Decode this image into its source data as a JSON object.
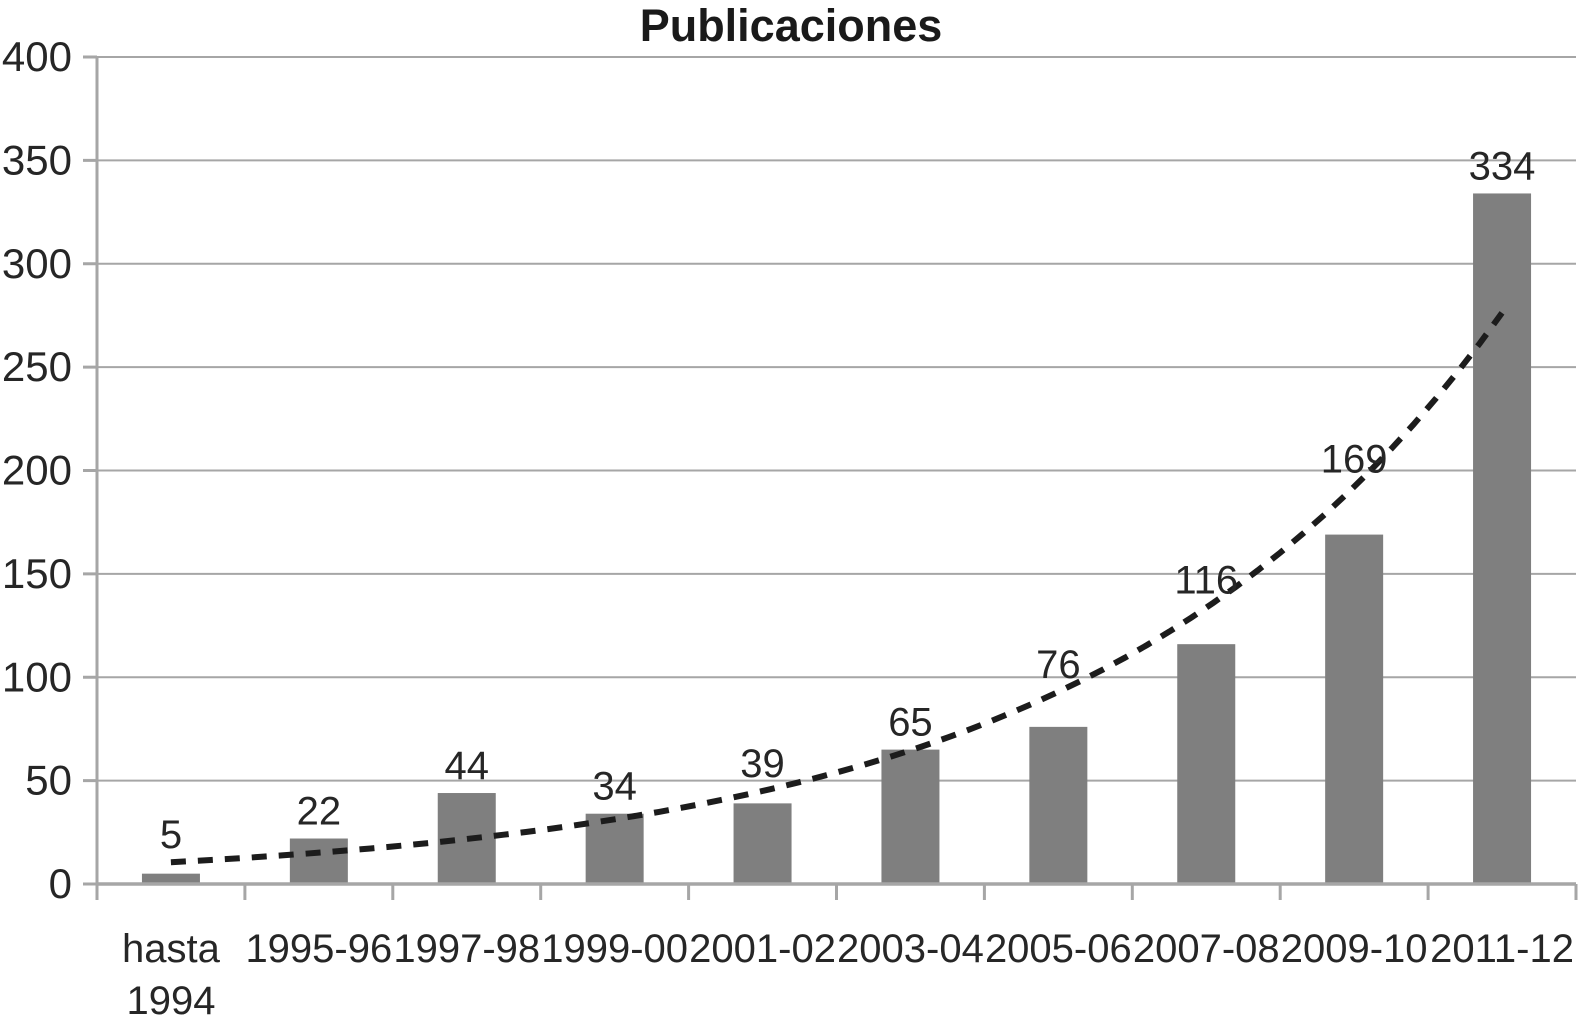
{
  "chart_data": {
    "type": "bar",
    "title": "Publicaciones",
    "categories": [
      "hasta 1994",
      "1995-96",
      "1997-98",
      "1999-00",
      "2001-02",
      "2003-04",
      "2005-06",
      "2007-08",
      "2009-10",
      "2011-12"
    ],
    "values": [
      5,
      22,
      44,
      34,
      39,
      65,
      76,
      116,
      169,
      334
    ],
    "xlabel": "",
    "ylabel": "",
    "ylim": [
      0,
      400
    ],
    "yticks": [
      0,
      50,
      100,
      150,
      200,
      250,
      300,
      350,
      400
    ],
    "grid": true,
    "legend": "none",
    "bar_labels_shown": true,
    "trendline": {
      "type": "exponential",
      "a": 10.53,
      "b": 0.363,
      "style": "dashed",
      "end_value": 276
    }
  },
  "colors": {
    "bar": "#7f7f7f",
    "gridline": "#a6a6a6",
    "axis": "#a6a6a6",
    "text": "#262626",
    "title": "#1a1a1a",
    "trendline": "#1c1c1c",
    "background": "#ffffff"
  }
}
